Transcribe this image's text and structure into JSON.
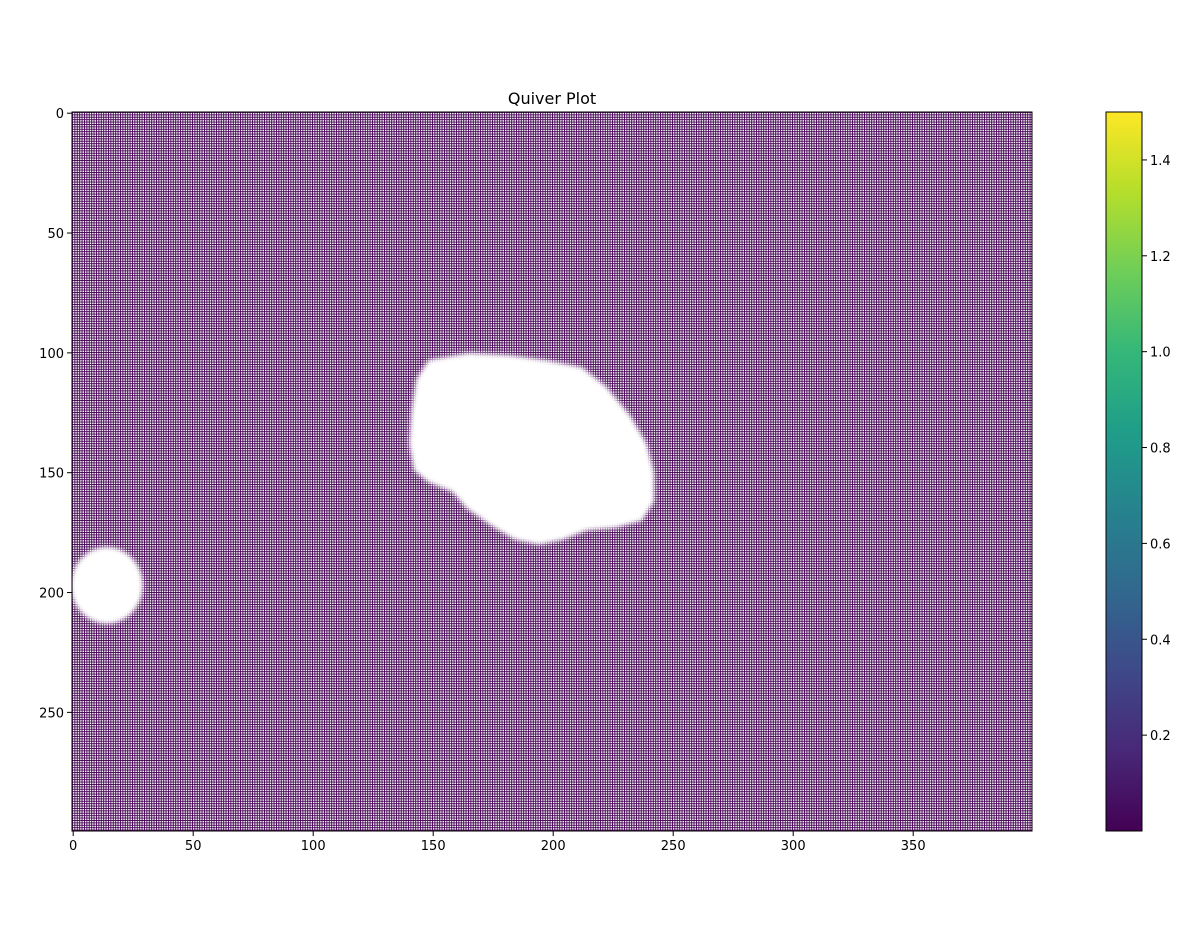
{
  "chart_data": {
    "type": "heatmap",
    "title": "Quiver Plot",
    "xlabel": "",
    "ylabel": "",
    "grid": {
      "cols": 400,
      "rows": 300
    },
    "xlim": [
      -0.5,
      399.5
    ],
    "ylim": [
      299.5,
      -0.5
    ],
    "x_ticks": [
      0,
      50,
      100,
      150,
      200,
      250,
      300,
      350
    ],
    "y_ticks": [
      0,
      50,
      100,
      150,
      200,
      250
    ],
    "colormap": "viridis",
    "colorbar": {
      "range": [
        0.0,
        1.5
      ],
      "ticks": [
        0.2,
        0.4,
        0.6,
        0.8,
        1.0,
        1.2,
        1.4
      ],
      "stops": [
        "#440154",
        "#482878",
        "#3e4989",
        "#31688e",
        "#26828e",
        "#1f9e89",
        "#35b779",
        "#6ece58",
        "#b5de2b",
        "#fde725"
      ]
    },
    "field": {
      "dominant_value": 0.0,
      "dominant_color": "#440154",
      "blank_regions": [
        {
          "shape": "blob",
          "points": [
            [
              148,
              103
            ],
            [
              165,
              100
            ],
            [
              182,
              101
            ],
            [
              197,
              103
            ],
            [
              212,
              106
            ],
            [
              222,
              114
            ],
            [
              232,
              126
            ],
            [
              239,
              138
            ],
            [
              242,
              150
            ],
            [
              242,
              162
            ],
            [
              237,
              170
            ],
            [
              226,
              173
            ],
            [
              214,
              174
            ],
            [
              204,
              178
            ],
            [
              194,
              180
            ],
            [
              184,
              178
            ],
            [
              174,
              172
            ],
            [
              164,
              165
            ],
            [
              158,
              158
            ],
            [
              148,
              154
            ],
            [
              142,
              149
            ],
            [
              140,
              138
            ],
            [
              141,
              124
            ],
            [
              143,
              111
            ]
          ]
        },
        {
          "shape": "ellipse",
          "cx": 14,
          "cy": 197,
          "rx": 15,
          "ry": 16
        }
      ]
    }
  }
}
